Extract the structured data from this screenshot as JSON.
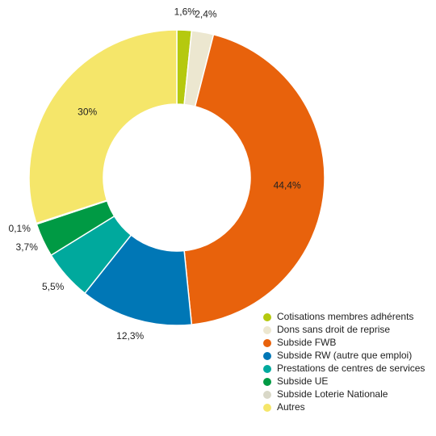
{
  "chart_data": {
    "type": "donut",
    "categories": [
      "Cotisations membres adhérents",
      "Dons sans droit de reprise",
      "Subside FWB",
      "Subside RW (autre que emploi)",
      "Prestations de centres de services",
      "Subside UE",
      "Subside Loterie Nationale",
      "Autres"
    ],
    "values": [
      1.6,
      2.4,
      44.4,
      12.3,
      5.5,
      3.7,
      0.1,
      30
    ],
    "value_labels": [
      "1,6%",
      "2,4%",
      "44,4%",
      "12,3%",
      "5,5%",
      "3,7%",
      "0,1%",
      "30%"
    ],
    "colors": [
      "#b5c90f",
      "#ece7d0",
      "#e8620c",
      "#0077b6",
      "#00a99d",
      "#009a44",
      "#d9d8c8",
      "#f5e66a"
    ],
    "legend": "bottom-right"
  }
}
